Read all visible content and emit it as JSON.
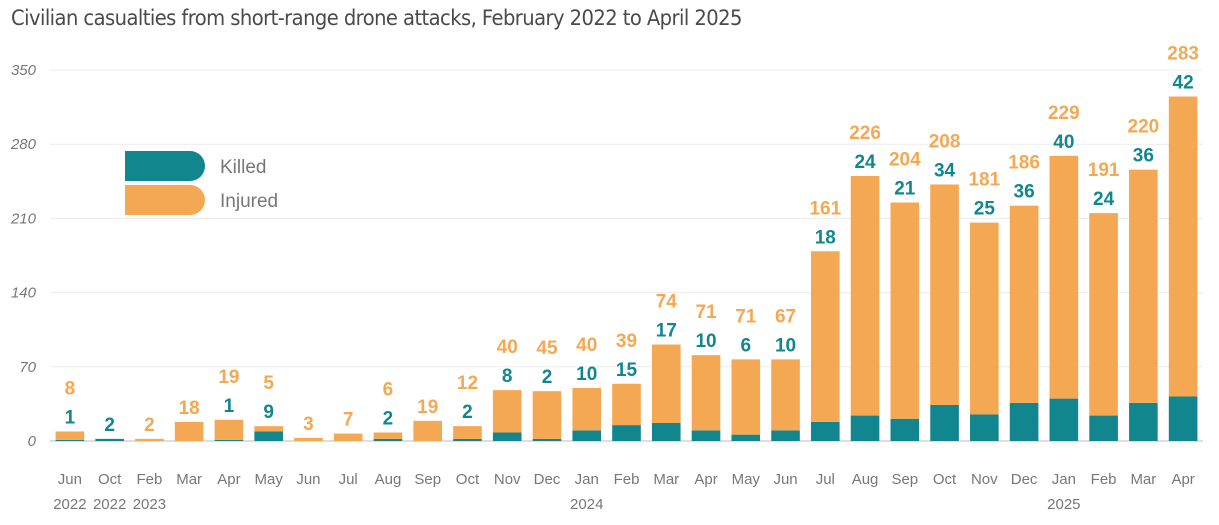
{
  "chart_data": {
    "type": "bar",
    "stacked": true,
    "title": "Civilian casualties from short-range drone attacks, February 2022 to April 2025",
    "xlabel": "",
    "ylabel": "",
    "ylim": [
      0,
      350
    ],
    "yticks": [
      0,
      70,
      140,
      210,
      280,
      350
    ],
    "grid": true,
    "legend_position": "top-left",
    "colors": {
      "Killed": "#12868f",
      "Injured": "#f4a853"
    },
    "categories": [
      {
        "month": "Jun",
        "year": "2022"
      },
      {
        "month": "Oct",
        "year": "2022"
      },
      {
        "month": "Feb",
        "year": "2023"
      },
      {
        "month": "Mar",
        "year": ""
      },
      {
        "month": "Apr",
        "year": ""
      },
      {
        "month": "May",
        "year": ""
      },
      {
        "month": "Jun",
        "year": ""
      },
      {
        "month": "Jul",
        "year": ""
      },
      {
        "month": "Aug",
        "year": ""
      },
      {
        "month": "Sep",
        "year": ""
      },
      {
        "month": "Oct",
        "year": ""
      },
      {
        "month": "Nov",
        "year": ""
      },
      {
        "month": "Dec",
        "year": ""
      },
      {
        "month": "Jan",
        "year": "2024"
      },
      {
        "month": "Feb",
        "year": ""
      },
      {
        "month": "Mar",
        "year": ""
      },
      {
        "month": "Apr",
        "year": ""
      },
      {
        "month": "May",
        "year": ""
      },
      {
        "month": "Jun",
        "year": ""
      },
      {
        "month": "Jul",
        "year": ""
      },
      {
        "month": "Aug",
        "year": ""
      },
      {
        "month": "Sep",
        "year": ""
      },
      {
        "month": "Oct",
        "year": ""
      },
      {
        "month": "Nov",
        "year": ""
      },
      {
        "month": "Dec",
        "year": ""
      },
      {
        "month": "Jan",
        "year": "2025"
      },
      {
        "month": "Feb",
        "year": ""
      },
      {
        "month": "Mar",
        "year": ""
      },
      {
        "month": "Apr",
        "year": ""
      }
    ],
    "series": [
      {
        "name": "Killed",
        "values": [
          1,
          2,
          null,
          null,
          1,
          9,
          null,
          null,
          2,
          null,
          2,
          8,
          2,
          10,
          15,
          17,
          10,
          6,
          10,
          18,
          24,
          21,
          34,
          25,
          36,
          40,
          24,
          36,
          42
        ]
      },
      {
        "name": "Injured",
        "values": [
          8,
          null,
          2,
          18,
          19,
          5,
          3,
          7,
          6,
          19,
          12,
          40,
          45,
          40,
          39,
          74,
          71,
          71,
          67,
          161,
          226,
          204,
          208,
          181,
          186,
          229,
          191,
          220,
          283
        ]
      }
    ]
  }
}
